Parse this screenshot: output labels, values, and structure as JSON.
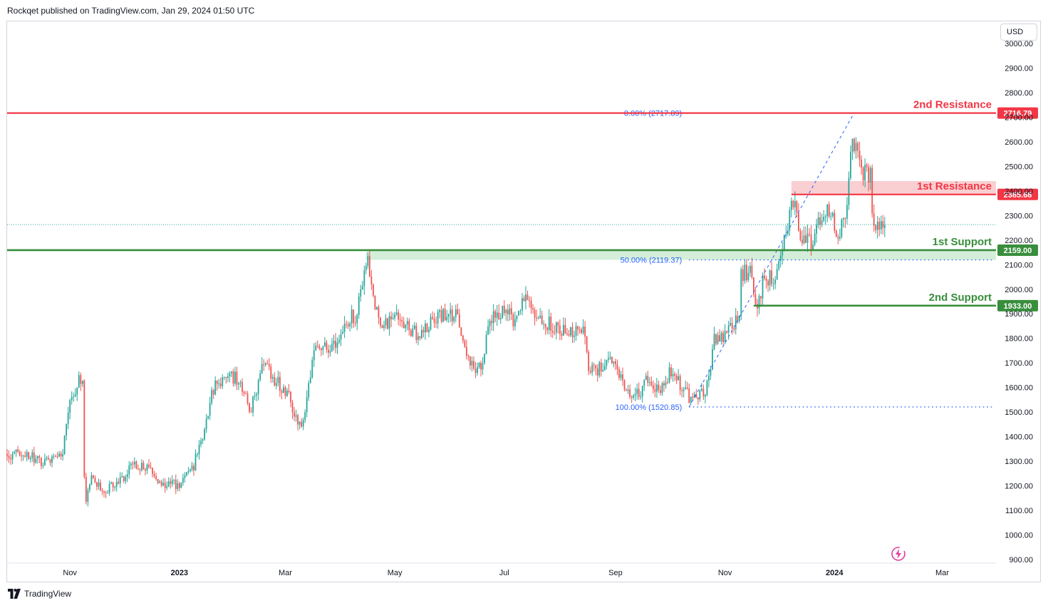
{
  "header": {
    "publisher": "Rockqet published on TradingView.com, Jan 29, 2024 01:50 UTC"
  },
  "currency": "USD",
  "brand": {
    "name": "TradingView"
  },
  "icons": {
    "brand": "tradingview-logo-icon",
    "zap": "lightning-icon"
  },
  "colors": {
    "up": "#26a69a",
    "down": "#ef5350",
    "resistance": "#f23645",
    "support": "#388e3c",
    "fib": "#2962ff",
    "last_price": "#26a69a"
  },
  "chart_data": {
    "type": "candlestick",
    "ylim": [
      900,
      3000
    ],
    "y_ticks": [
      "3000.00",
      "2900.00",
      "2800.00",
      "2700.00",
      "2600.00",
      "2500.00",
      "2400.00",
      "2300.00",
      "2200.00",
      "2100.00",
      "2000.00",
      "1900.00",
      "1800.00",
      "1700.00",
      "1600.00",
      "1500.00",
      "1400.00",
      "1300.00",
      "1200.00",
      "1100.00",
      "1000.00",
      "900.00"
    ],
    "x_range": [
      "2022-09-27",
      "2024-03-31"
    ],
    "x_ticks": [
      {
        "date": "2022-11-01",
        "label": "Nov",
        "bold": false
      },
      {
        "date": "2023-01-01",
        "label": "2023",
        "bold": true
      },
      {
        "date": "2023-03-01",
        "label": "Mar",
        "bold": false
      },
      {
        "date": "2023-05-01",
        "label": "May",
        "bold": false
      },
      {
        "date": "2023-07-01",
        "label": "Jul",
        "bold": false
      },
      {
        "date": "2023-09-01",
        "label": "Sep",
        "bold": false
      },
      {
        "date": "2023-11-01",
        "label": "Nov",
        "bold": false
      },
      {
        "date": "2024-01-01",
        "label": "2024",
        "bold": true
      },
      {
        "date": "2024-03-01",
        "label": "Mar",
        "bold": false
      }
    ],
    "price_path": [
      [
        "2022-09-27",
        1330
      ],
      [
        "2022-10-10",
        1320
      ],
      [
        "2022-10-20",
        1290
      ],
      [
        "2022-10-28",
        1340
      ],
      [
        "2022-11-01",
        1560
      ],
      [
        "2022-11-05",
        1610
      ],
      [
        "2022-11-08",
        1650
      ],
      [
        "2022-11-09",
        1230
      ],
      [
        "2022-11-10",
        1150
      ],
      [
        "2022-11-13",
        1240
      ],
      [
        "2022-11-20",
        1180
      ],
      [
        "2022-11-28",
        1210
      ],
      [
        "2022-12-05",
        1280
      ],
      [
        "2022-12-15",
        1270
      ],
      [
        "2022-12-20",
        1220
      ],
      [
        "2022-12-31",
        1200
      ],
      [
        "2023-01-08",
        1260
      ],
      [
        "2023-01-14",
        1410
      ],
      [
        "2023-01-21",
        1630
      ],
      [
        "2023-02-01",
        1640
      ],
      [
        "2023-02-10",
        1510
      ],
      [
        "2023-02-16",
        1690
      ],
      [
        "2023-02-25",
        1620
      ],
      [
        "2023-03-03",
        1560
      ],
      [
        "2023-03-10",
        1420
      ],
      [
        "2023-03-13",
        1560
      ],
      [
        "2023-03-18",
        1790
      ],
      [
        "2023-03-28",
        1760
      ],
      [
        "2023-04-04",
        1870
      ],
      [
        "2023-04-10",
        1900
      ],
      [
        "2023-04-13",
        2020
      ],
      [
        "2023-04-16",
        2100
      ],
      [
        "2023-04-20",
        1950
      ],
      [
        "2023-04-24",
        1850
      ],
      [
        "2023-05-01",
        1880
      ],
      [
        "2023-05-10",
        1830
      ],
      [
        "2023-05-15",
        1820
      ],
      [
        "2023-05-30",
        1910
      ],
      [
        "2023-06-05",
        1890
      ],
      [
        "2023-06-10",
        1740
      ],
      [
        "2023-06-15",
        1650
      ],
      [
        "2023-06-20",
        1720
      ],
      [
        "2023-06-22",
        1880
      ],
      [
        "2023-07-01",
        1920
      ],
      [
        "2023-07-07",
        1860
      ],
      [
        "2023-07-13",
        1980
      ],
      [
        "2023-07-17",
        1920
      ],
      [
        "2023-07-25",
        1860
      ],
      [
        "2023-08-05",
        1830
      ],
      [
        "2023-08-14",
        1840
      ],
      [
        "2023-08-17",
        1680
      ],
      [
        "2023-08-22",
        1670
      ],
      [
        "2023-08-29",
        1720
      ],
      [
        "2023-09-05",
        1630
      ],
      [
        "2023-09-11",
        1550
      ],
      [
        "2023-09-18",
        1620
      ],
      [
        "2023-09-26",
        1590
      ],
      [
        "2023-10-02",
        1670
      ],
      [
        "2023-10-05",
        1640
      ],
      [
        "2023-10-12",
        1560
      ],
      [
        "2023-10-20",
        1570
      ],
      [
        "2023-10-23",
        1650
      ],
      [
        "2023-10-26",
        1790
      ],
      [
        "2023-11-02",
        1820
      ],
      [
        "2023-11-09",
        1890
      ],
      [
        "2023-11-10",
        2060
      ],
      [
        "2023-11-13",
        2070
      ],
      [
        "2023-11-16",
        2060
      ],
      [
        "2023-11-17",
        1970
      ],
      [
        "2023-11-21",
        1940
      ],
      [
        "2023-11-22",
        2050
      ],
      [
        "2023-11-28",
        2040
      ],
      [
        "2023-12-01",
        2090
      ],
      [
        "2023-12-05",
        2230
      ],
      [
        "2023-12-08",
        2340
      ],
      [
        "2023-12-10",
        2360
      ],
      [
        "2023-12-12",
        2200
      ],
      [
        "2023-12-15",
        2230
      ],
      [
        "2023-12-19",
        2170
      ],
      [
        "2023-12-24",
        2280
      ],
      [
        "2023-12-28",
        2340
      ],
      [
        "2023-12-31",
        2300
      ],
      [
        "2024-01-03",
        2200
      ],
      [
        "2024-01-08",
        2320
      ],
      [
        "2024-01-10",
        2560
      ],
      [
        "2024-01-12",
        2600
      ],
      [
        "2024-01-14",
        2520
      ],
      [
        "2024-01-18",
        2470
      ],
      [
        "2024-01-21",
        2460
      ],
      [
        "2024-01-22",
        2300
      ],
      [
        "2024-01-24",
        2230
      ],
      [
        "2024-01-27",
        2260
      ],
      [
        "2024-01-29",
        2263
      ]
    ],
    "levels": [
      {
        "name": "2nd Resistance",
        "value": 2716.79,
        "label": "2716.79",
        "kind": "resistance",
        "from": "2022-09-27"
      },
      {
        "name": "1st Resistance",
        "value": 2385.68,
        "label": "2385.68",
        "kind": "resistance",
        "from": "2023-12-08"
      },
      {
        "name": "1st Support",
        "value": 2159.0,
        "label": "2159.00",
        "kind": "support",
        "from": "2022-09-27"
      },
      {
        "name": "2nd Support",
        "value": 1933.0,
        "label": "1933.00",
        "kind": "support",
        "from": "2023-11-17"
      }
    ],
    "zones": [
      {
        "kind": "resistance",
        "from": "2023-12-08",
        "to": "2024-03-31",
        "y0": 2385.68,
        "y1": 2440
      },
      {
        "kind": "support",
        "from": "2023-04-15",
        "to": "2024-03-31",
        "y0": 2119.37,
        "y1": 2159.0
      }
    ],
    "fibonacci": [
      {
        "label": "0.00% (2717.89)",
        "value": 2717.89
      },
      {
        "label": "50.00% (2119.37)",
        "value": 2119.37
      },
      {
        "label": "100.00% (1520.85)",
        "value": 1520.85
      }
    ],
    "fib_anchor": {
      "start": "2023-10-12",
      "end": "2024-01-12",
      "line_end": "2024-03-29"
    },
    "last_price": 2263,
    "grid": false
  }
}
